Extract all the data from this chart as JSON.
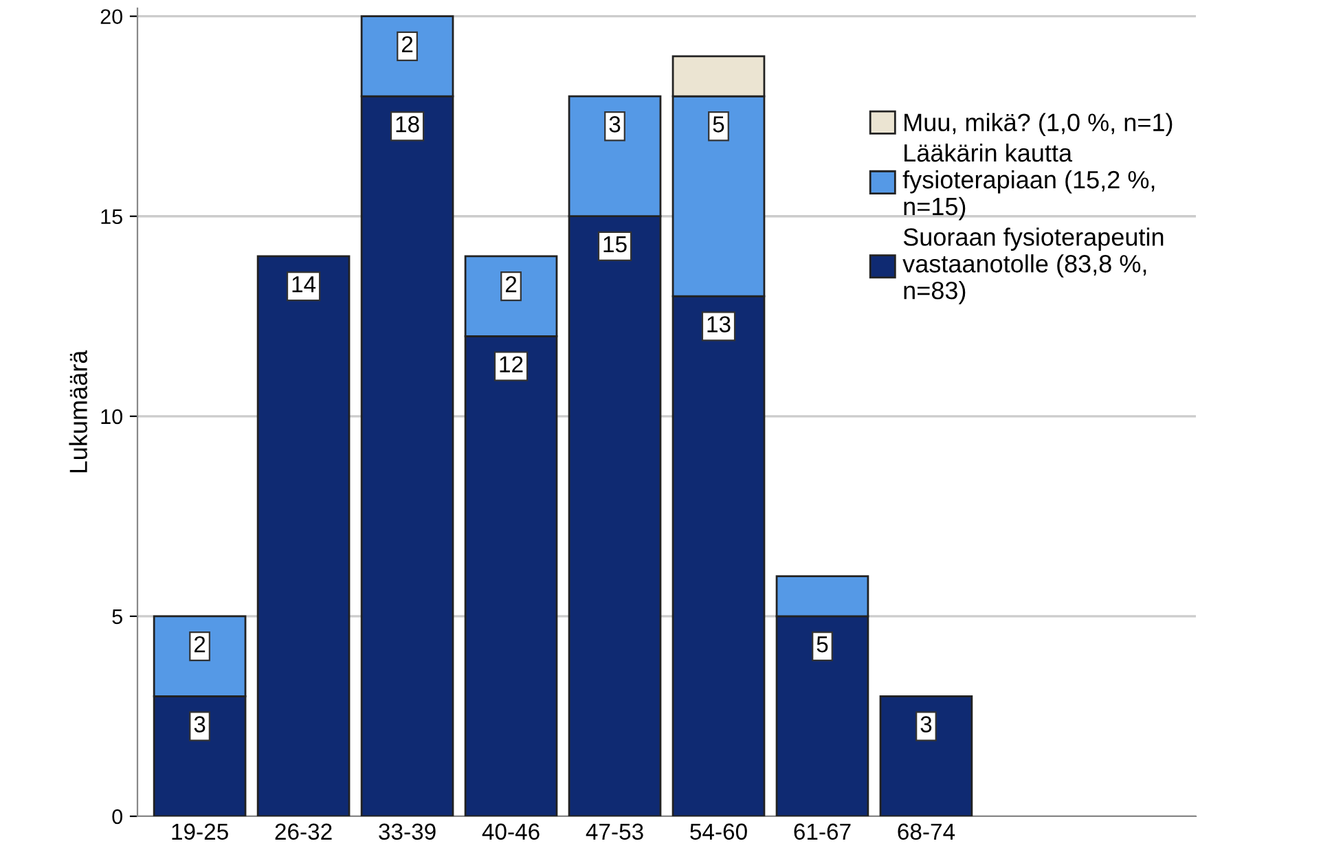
{
  "chart_data": {
    "type": "bar",
    "stacked": true,
    "ylabel": "Lukumäärä",
    "categories": [
      "19-25",
      "26-32",
      "33-39",
      "40-46",
      "47-53",
      "54-60",
      "61-67",
      "68-74"
    ],
    "series": [
      {
        "name": "Suoraan fysioterapeutin\nvastaanotolle (83,8 %,\nn=83)",
        "color": "#0f2a72",
        "values": [
          3,
          14,
          18,
          12,
          15,
          13,
          5,
          3
        ],
        "value_labels": [
          "3",
          "14",
          "18",
          "12",
          "15",
          "13",
          "5",
          "3"
        ]
      },
      {
        "name": "Lääkärin kautta\nfysioterapiaan (15,2 %,\nn=15)",
        "color": "#5599e6",
        "values": [
          2,
          null,
          2,
          2,
          3,
          5,
          1,
          null
        ],
        "value_labels": [
          "2",
          null,
          "2",
          "2",
          "3",
          "5",
          null,
          null
        ]
      },
      {
        "name": "Muu, mikä? (1,0 %, n=1)",
        "color": "#ebe4d2",
        "values": [
          null,
          null,
          null,
          null,
          null,
          1,
          null,
          null
        ],
        "value_labels": [
          null,
          null,
          null,
          null,
          null,
          null,
          null,
          null
        ]
      }
    ],
    "ylim": [
      0,
      20.2
    ],
    "yticks": [
      0,
      5,
      10,
      15,
      20
    ],
    "grid": "y",
    "legend": "top right"
  }
}
